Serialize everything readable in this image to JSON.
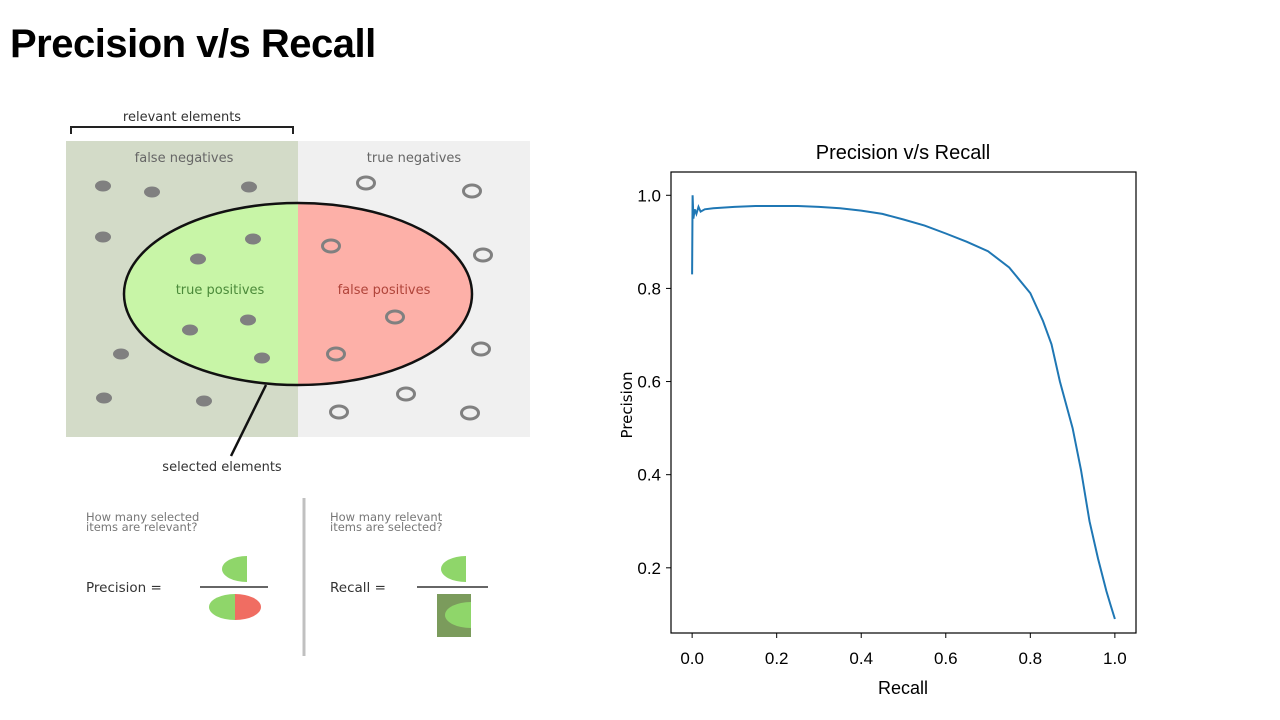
{
  "slide": {
    "title": "Precision v/s Recall"
  },
  "diagram": {
    "relevant_label": "relevant elements",
    "false_negatives_label": "false negatives",
    "true_negatives_label": "true negatives",
    "true_positives_label": "true positives",
    "false_positives_label": "false positives",
    "selected_label": "selected elements",
    "precision_question_line1": "How many selected",
    "precision_question_line2": "items are relevant?",
    "recall_question_line1": "How many relevant",
    "recall_question_line2": "items are selected?",
    "precision_label": "Precision =",
    "recall_label": "Recall =",
    "colors": {
      "relevant_bg": "#d3dbc8",
      "irrelevant_bg": "#f0f0f0",
      "tp_fill": "#c8f5a7",
      "fp_fill": "#fdb0a8",
      "dot": "#808080"
    }
  },
  "chart_data": {
    "type": "line",
    "title": "Precision v/s Recall",
    "xlabel": "Recall",
    "ylabel": "Precision",
    "xlim": [
      -0.05,
      1.05
    ],
    "ylim": [
      0.06,
      1.05
    ],
    "xticks": [
      0.0,
      0.2,
      0.4,
      0.6,
      0.8,
      1.0
    ],
    "xtick_labels": [
      "0.0",
      "0.2",
      "0.4",
      "0.6",
      "0.8",
      "1.0"
    ],
    "yticks": [
      0.2,
      0.4,
      0.6,
      0.8,
      1.0
    ],
    "ytick_labels": [
      "0.2",
      "0.4",
      "0.6",
      "0.8",
      "1.0"
    ],
    "series": [
      {
        "name": "precision-recall",
        "color": "#1f77b4",
        "points": [
          [
            0.0,
            0.83
          ],
          [
            0.001,
            1.0
          ],
          [
            0.003,
            0.95
          ],
          [
            0.006,
            0.97
          ],
          [
            0.01,
            0.96
          ],
          [
            0.015,
            0.975
          ],
          [
            0.02,
            0.965
          ],
          [
            0.03,
            0.97
          ],
          [
            0.05,
            0.972
          ],
          [
            0.1,
            0.975
          ],
          [
            0.15,
            0.977
          ],
          [
            0.2,
            0.977
          ],
          [
            0.25,
            0.977
          ],
          [
            0.3,
            0.975
          ],
          [
            0.35,
            0.972
          ],
          [
            0.4,
            0.967
          ],
          [
            0.45,
            0.96
          ],
          [
            0.5,
            0.948
          ],
          [
            0.55,
            0.935
          ],
          [
            0.6,
            0.918
          ],
          [
            0.65,
            0.9
          ],
          [
            0.7,
            0.88
          ],
          [
            0.75,
            0.845
          ],
          [
            0.8,
            0.79
          ],
          [
            0.83,
            0.73
          ],
          [
            0.85,
            0.68
          ],
          [
            0.87,
            0.6
          ],
          [
            0.9,
            0.5
          ],
          [
            0.92,
            0.41
          ],
          [
            0.94,
            0.3
          ],
          [
            0.96,
            0.22
          ],
          [
            0.98,
            0.15
          ],
          [
            0.99,
            0.12
          ],
          [
            1.0,
            0.09
          ]
        ]
      }
    ]
  }
}
